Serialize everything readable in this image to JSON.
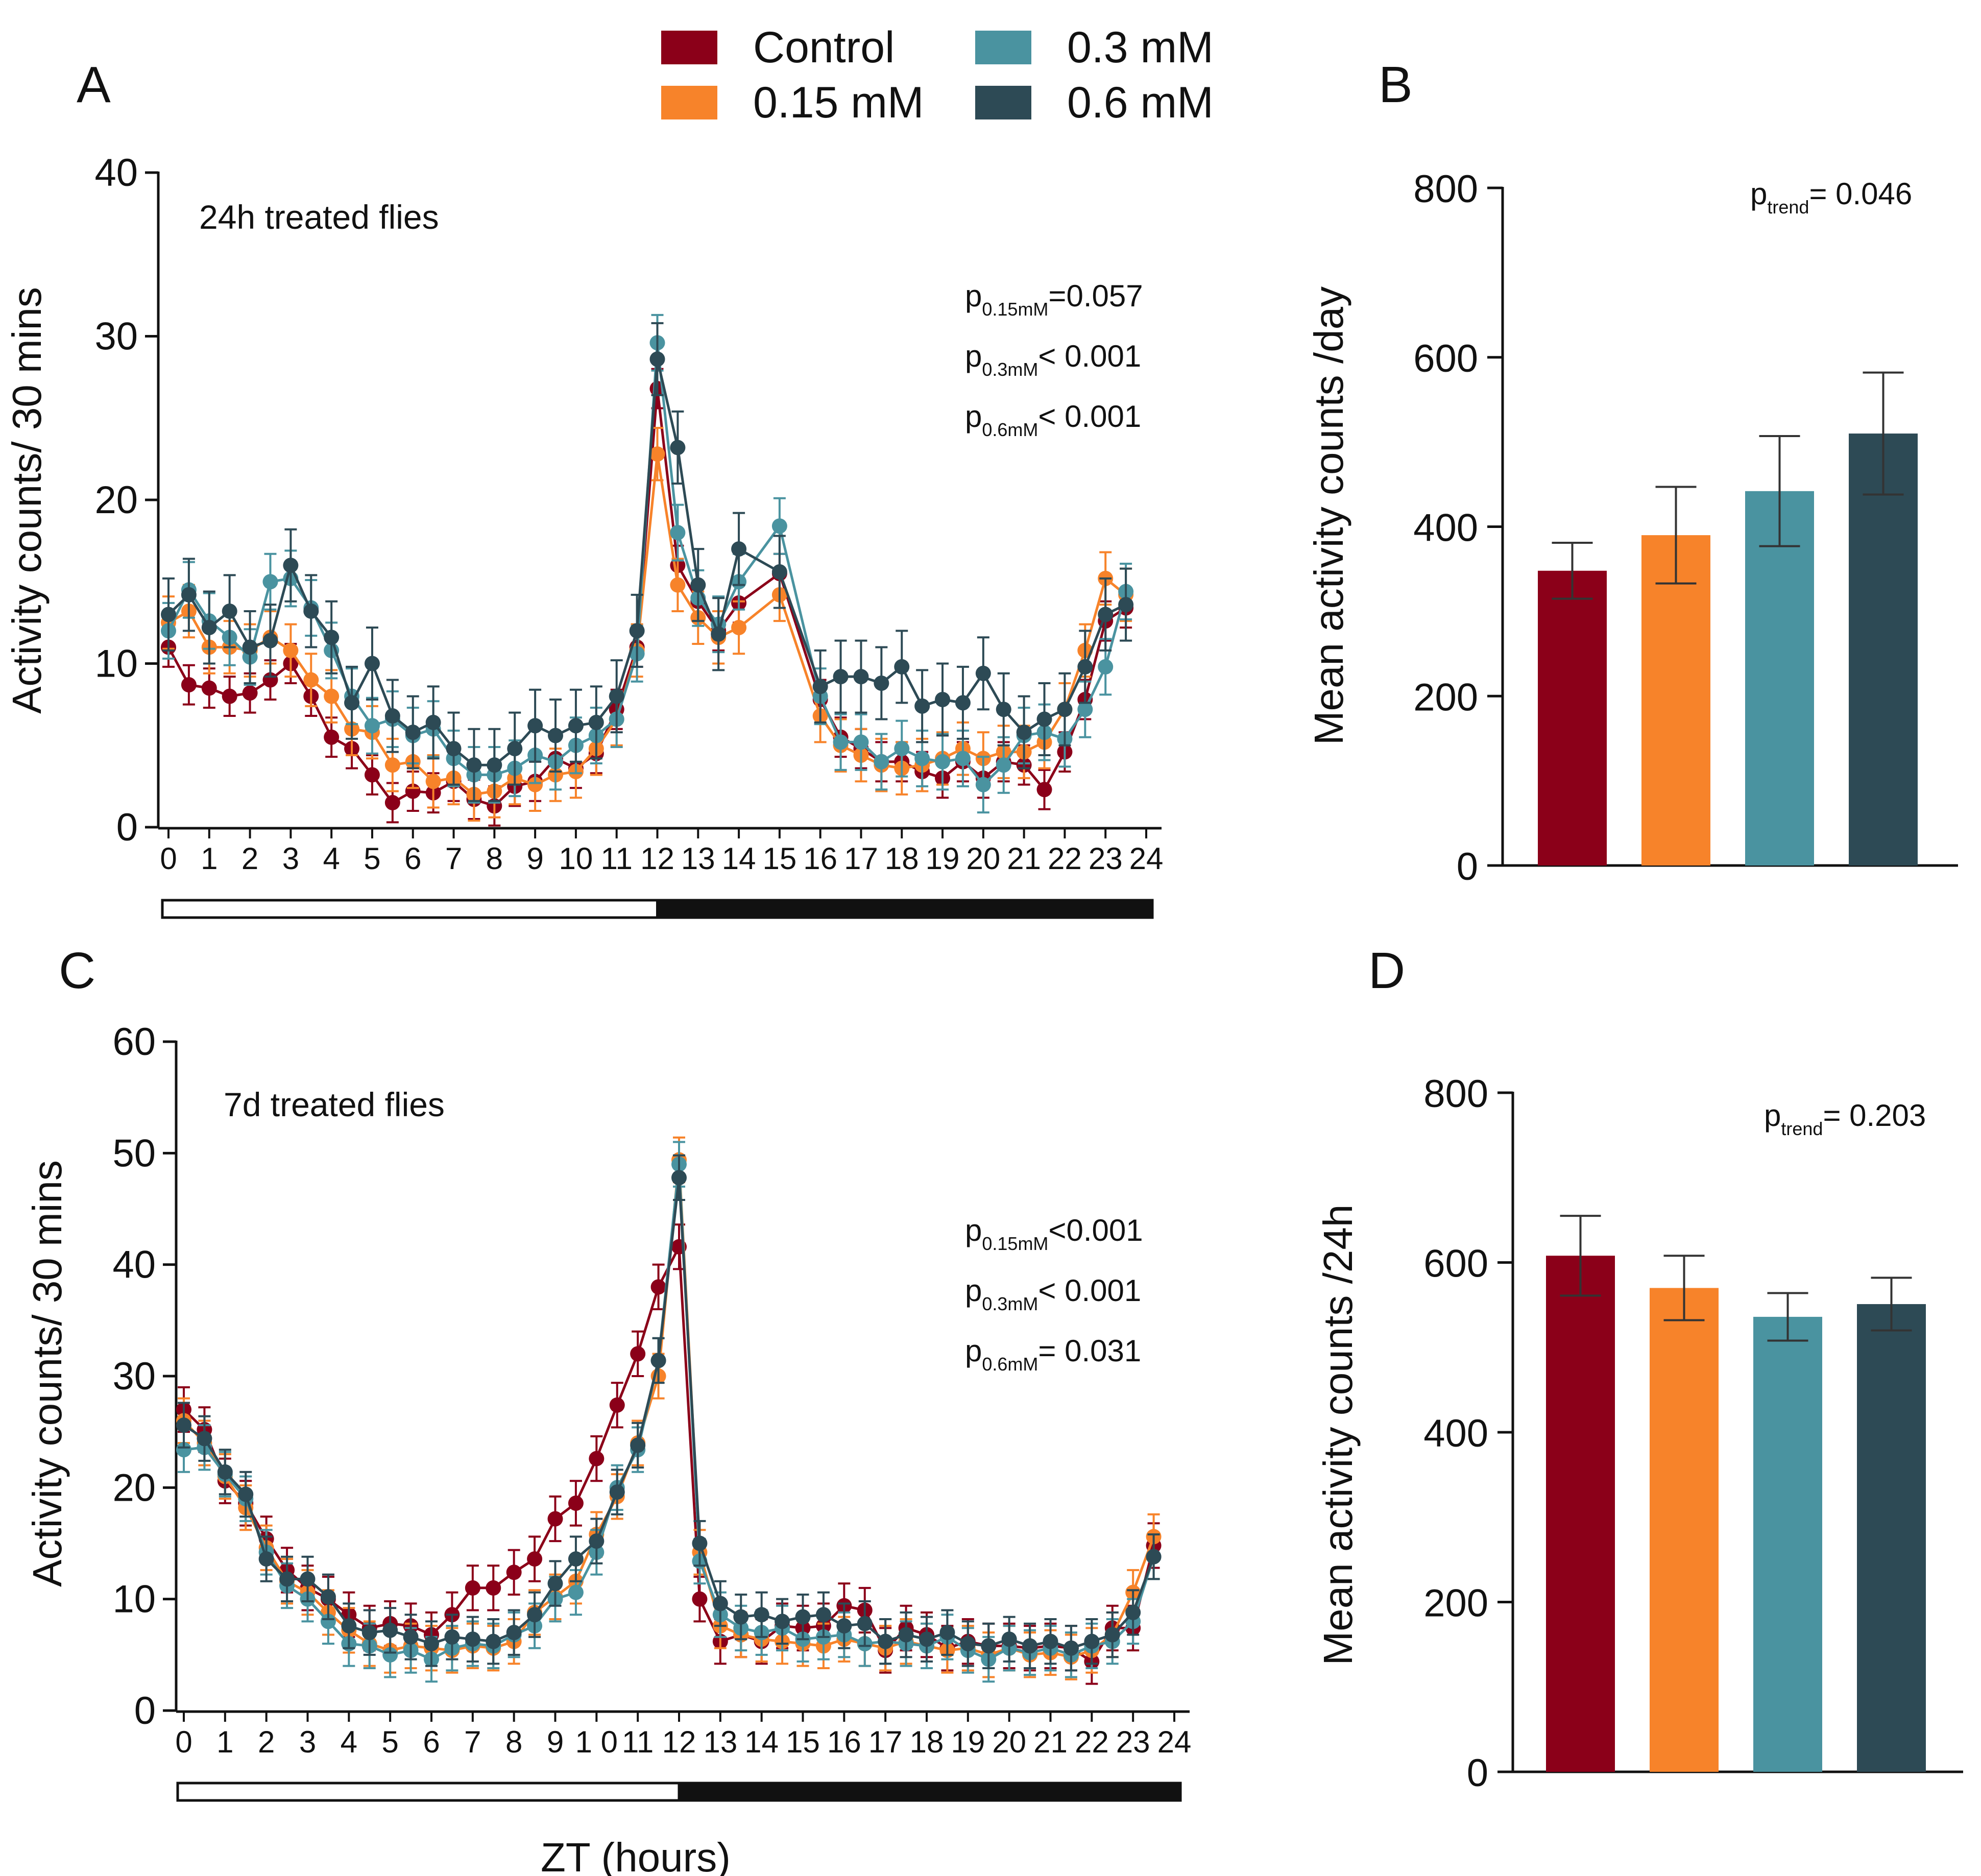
{
  "figure": {
    "legend": [
      {
        "label": "Control",
        "color": "#8b0019"
      },
      {
        "label": "0.15 mM",
        "color": "#f7832a"
      },
      {
        "label": "0.3 mM",
        "color": "#4a93a0"
      },
      {
        "label": "0.6 mM",
        "color": "#2d4a55"
      }
    ],
    "shared_xlabel": "ZT (hours)"
  },
  "chart_data": [
    {
      "panel": "A",
      "type": "line",
      "title": "24h treated flies",
      "ylabel": "Activity counts/ 30 mins",
      "xlabel": "ZT (hours)",
      "xlim": [
        0,
        24
      ],
      "ylim": [
        0,
        40
      ],
      "yticks": [
        0,
        10,
        20,
        30,
        40
      ],
      "xtick_labels": [
        "0",
        "1",
        "2",
        "3",
        "4",
        "5",
        "6",
        "7",
        "8",
        "9",
        "10",
        "11",
        "12",
        "13",
        "14",
        "15",
        "16",
        "17",
        "18",
        "19",
        "20",
        "21",
        "22",
        "23",
        "24"
      ],
      "light_dark_bar": {
        "light": [
          0,
          12
        ],
        "dark": [
          12,
          24
        ]
      },
      "annotations": [
        {
          "main": "p",
          "sub": "0.15mM",
          "rest": "=0.057"
        },
        {
          "main": "p",
          "sub": "0.3mM",
          "rest": "< 0.001"
        },
        {
          "main": "p",
          "sub": "0.6mM",
          "rest": "< 0.001"
        }
      ],
      "series": [
        {
          "name": "Control",
          "color": "#8b0019",
          "err": 1.2,
          "x": [
            0,
            0.5,
            1,
            1.5,
            2,
            2.5,
            3,
            3.5,
            4,
            4.5,
            5,
            5.5,
            6,
            6.5,
            7,
            7.5,
            8,
            8.5,
            9,
            9.5,
            10,
            10.5,
            11,
            11.5,
            12,
            12.5,
            13,
            13.5,
            14,
            15,
            16,
            16.5,
            17,
            17.5,
            18,
            18.5,
            19,
            19.5,
            20,
            20.5,
            21,
            21.5,
            22,
            22.5,
            23,
            23.5
          ],
          "y": [
            11,
            8.7,
            8.5,
            8,
            8.2,
            9,
            10,
            8,
            5.5,
            4.8,
            3.2,
            1.5,
            2.2,
            2.1,
            2.8,
            1.7,
            1.3,
            2.5,
            2.8,
            4.2,
            3.6,
            4.5,
            7.2,
            11,
            26.8,
            16,
            13.8,
            12,
            13.7,
            15.5,
            7.8,
            5.5,
            4.8,
            4,
            4,
            3.4,
            3,
            4,
            3,
            4,
            3.8,
            2.3,
            4.6,
            7.8,
            12.6,
            13.4
          ]
        },
        {
          "name": "0.15 mM",
          "color": "#f7832a",
          "err": 1.6,
          "x": [
            0,
            0.5,
            1,
            1.5,
            2,
            2.5,
            3,
            3.5,
            4,
            4.5,
            5,
            5.5,
            6,
            6.5,
            7,
            7.5,
            8,
            8.5,
            9,
            9.5,
            10,
            10.5,
            11,
            11.5,
            12,
            12.5,
            13,
            13.5,
            14,
            15,
            16,
            16.5,
            17,
            17.5,
            18,
            18.5,
            19,
            19.5,
            20,
            20.5,
            21,
            21.5,
            22,
            22.5,
            23,
            23.5
          ],
          "y": [
            12.5,
            13.2,
            11,
            11,
            10.8,
            11.6,
            10.8,
            9,
            8,
            6,
            5.8,
            3.8,
            4,
            2.8,
            3,
            2,
            2.2,
            3,
            2.6,
            3.2,
            3.4,
            4.8,
            6.6,
            10.8,
            22.8,
            14.8,
            12.8,
            11.6,
            12.2,
            14.2,
            6.8,
            5,
            4.4,
            3.8,
            3.6,
            3.8,
            4.2,
            4.8,
            4.2,
            4.6,
            4.6,
            5.2,
            7.2,
            10.8,
            15.2,
            14.2
          ]
        },
        {
          "name": "0.3 mM",
          "color": "#4a93a0",
          "err": 1.7,
          "x": [
            0,
            0.5,
            1,
            1.5,
            2,
            2.5,
            3,
            3.5,
            4,
            4.5,
            5,
            5.5,
            6,
            6.5,
            7,
            7.5,
            8,
            8.5,
            9,
            9.5,
            10,
            10.5,
            11,
            11.5,
            12,
            12.5,
            13,
            13.5,
            14,
            15,
            16,
            16.5,
            17,
            17.5,
            18,
            18.5,
            19,
            19.5,
            20,
            20.5,
            21,
            21.5,
            22,
            22.5,
            23,
            23.5
          ],
          "y": [
            12,
            14.5,
            12.6,
            11.6,
            10.4,
            15,
            15.2,
            13.4,
            10.8,
            8,
            6.2,
            6.6,
            5.6,
            6,
            4.2,
            3.2,
            3.2,
            3.6,
            4.4,
            4,
            5,
            5.6,
            6.6,
            10.6,
            29.6,
            18,
            14,
            12.4,
            15,
            18.4,
            8,
            5.2,
            5.2,
            4,
            4.8,
            4.2,
            4,
            4.2,
            2.6,
            3.8,
            5.6,
            5.8,
            5.4,
            7.2,
            9.8,
            14.4
          ]
        },
        {
          "name": "0.6 mM",
          "color": "#2d4a55",
          "err": 2.2,
          "x": [
            0,
            0.5,
            1,
            1.5,
            2,
            2.5,
            3,
            3.5,
            4,
            4.5,
            5,
            5.5,
            6,
            6.5,
            7,
            7.5,
            8,
            8.5,
            9,
            9.5,
            10,
            10.5,
            11,
            11.5,
            12,
            12.5,
            13,
            13.5,
            14,
            15,
            16,
            16.5,
            17,
            17.5,
            18,
            18.5,
            19,
            19.5,
            20,
            20.5,
            21,
            21.5,
            22,
            22.5,
            23,
            23.5
          ],
          "y": [
            13,
            14.2,
            12.2,
            13.2,
            11,
            11.4,
            16,
            13.2,
            11.6,
            7.6,
            10,
            6.8,
            5.8,
            6.4,
            4.8,
            3.8,
            3.8,
            4.8,
            6.2,
            5.6,
            6.2,
            6.4,
            8,
            12,
            28.6,
            23.2,
            14.8,
            11.8,
            17,
            15.6,
            8.6,
            9.2,
            9.2,
            8.8,
            9.8,
            7.4,
            7.8,
            7.6,
            9.4,
            7.2,
            5.8,
            6.6,
            7.2,
            9.8,
            13,
            13.6
          ]
        }
      ]
    },
    {
      "panel": "B",
      "type": "bar",
      "ylabel": "Mean activity counts /day",
      "ylim": [
        0,
        800
      ],
      "yticks": [
        0,
        200,
        400,
        600,
        800
      ],
      "annotation": {
        "main": "p",
        "sub": "trend",
        "rest": "= 0.046"
      },
      "categories": [
        "Control",
        "0.15 mM",
        "0.3 mM",
        "0.6 mM"
      ],
      "values": [
        348,
        390,
        442,
        510
      ],
      "errors": [
        33,
        57,
        65,
        72
      ],
      "colors": [
        "#8b0019",
        "#f7832a",
        "#4a93a0",
        "#2d4a55"
      ]
    },
    {
      "panel": "C",
      "type": "line",
      "title": "7d treated flies",
      "ylabel": "Activity counts/ 30 mins",
      "xlabel": "ZT (hours)",
      "xlim": [
        0,
        24
      ],
      "ylim": [
        0,
        60
      ],
      "yticks": [
        0,
        10,
        20,
        30,
        40,
        50,
        60
      ],
      "xtick_labels": [
        "0",
        "1",
        "2",
        "3",
        "4",
        "5",
        "6",
        "7",
        "8",
        "9",
        "1 0",
        "11",
        "12",
        "13",
        "14",
        "15",
        "16",
        "17",
        "18",
        "19",
        "20",
        "21",
        "22",
        "23",
        "24"
      ],
      "light_dark_bar": {
        "light": [
          0,
          12
        ],
        "dark": [
          12,
          24
        ]
      },
      "annotations": [
        {
          "main": "p",
          "sub": "0.15mM",
          "rest": "<0.001"
        },
        {
          "main": "p",
          "sub": "0.3mM",
          "rest": "< 0.001"
        },
        {
          "main": "p",
          "sub": "0.6mM",
          "rest": "= 0.031"
        }
      ],
      "series": [
        {
          "name": "Control",
          "color": "#8b0019",
          "err": 2.0,
          "x": [
            0,
            0.5,
            1,
            1.5,
            2,
            2.5,
            3,
            3.5,
            4,
            4.5,
            5,
            5.5,
            6,
            6.5,
            7,
            7.5,
            8,
            8.5,
            9,
            9.5,
            10,
            10.5,
            11,
            11.5,
            12,
            12.5,
            13,
            13.5,
            14,
            14.5,
            15,
            15.5,
            16,
            16.5,
            17,
            17.5,
            18,
            18.5,
            19,
            19.5,
            20,
            20.5,
            21,
            21.5,
            22,
            22.5,
            23,
            23.5
          ],
          "y": [
            27,
            25.2,
            20.6,
            18.6,
            15.4,
            12.6,
            11,
            10,
            8.6,
            7.4,
            7.8,
            7.6,
            6.8,
            8.6,
            11,
            11,
            12.4,
            13.6,
            17.2,
            18.6,
            22.6,
            27.4,
            32,
            38,
            41.6,
            10,
            6.2,
            6.8,
            6.2,
            7.6,
            7.4,
            7.6,
            9.4,
            9,
            5.4,
            7.4,
            6.8,
            5.6,
            6.2,
            5.8,
            5.8,
            5.6,
            5.8,
            5.6,
            4.4,
            7.4,
            7.4,
            14.8
          ]
        },
        {
          "name": "0.15 mM",
          "color": "#f7832a",
          "err": 2.0,
          "x": [
            0,
            0.5,
            1,
            1.5,
            2,
            2.5,
            3,
            3.5,
            4,
            4.5,
            5,
            5.5,
            6,
            6.5,
            7,
            7.5,
            8,
            8.5,
            9,
            9.5,
            10,
            10.5,
            11,
            11.5,
            12,
            12.5,
            13,
            13.5,
            14,
            14.5,
            15,
            15.5,
            16,
            16.5,
            17,
            17.5,
            18,
            18.5,
            19,
            19.5,
            20,
            20.5,
            21,
            21.5,
            22,
            22.5,
            23,
            23.5
          ],
          "y": [
            26,
            24,
            21,
            18.2,
            14.6,
            11.6,
            10.6,
            8.8,
            7.2,
            6,
            5.4,
            5.8,
            5.6,
            5.4,
            5.8,
            5.6,
            6.2,
            8.8,
            10.2,
            11.6,
            15.8,
            19.2,
            24,
            30,
            49.4,
            14.2,
            7.6,
            6.8,
            6.4,
            6.2,
            6,
            5.8,
            6.4,
            6,
            5.6,
            6.2,
            5.8,
            5.4,
            5.6,
            5,
            5.6,
            5,
            5.2,
            4.8,
            5.4,
            6.8,
            10.6,
            15.6
          ]
        },
        {
          "name": "0.3 mM",
          "color": "#4a93a0",
          "err": 2.0,
          "x": [
            0,
            0.5,
            1,
            1.5,
            2,
            2.5,
            3,
            3.5,
            4,
            4.5,
            5,
            5.5,
            6,
            6.5,
            7,
            7.5,
            8,
            8.5,
            9,
            9.5,
            10,
            10.5,
            11,
            11.5,
            12,
            12.5,
            13,
            13.5,
            14,
            14.5,
            15,
            15.5,
            16,
            16.5,
            17,
            17.5,
            18,
            18.5,
            19,
            19.5,
            20,
            20.5,
            21,
            21.5,
            22,
            22.5,
            23,
            23.5
          ],
          "y": [
            23.4,
            23.6,
            21.2,
            19,
            14.2,
            11.2,
            10,
            8,
            6,
            5.8,
            5,
            5.4,
            4.6,
            5.6,
            6,
            5.8,
            6.8,
            7.6,
            10,
            10.6,
            14.2,
            20,
            23.4,
            31.4,
            49,
            13.4,
            8.6,
            7.4,
            7,
            7.4,
            6.4,
            6.6,
            6.8,
            6,
            6.2,
            6,
            5.8,
            6.6,
            5.4,
            4.6,
            5.6,
            5.2,
            5.6,
            5,
            5.8,
            6.2,
            8,
            13.8
          ]
        },
        {
          "name": "0.6 mM",
          "color": "#2d4a55",
          "err": 2.0,
          "x": [
            0,
            0.5,
            1,
            1.5,
            2,
            2.5,
            3,
            3.5,
            4,
            4.5,
            5,
            5.5,
            6,
            6.5,
            7,
            7.5,
            8,
            8.5,
            9,
            9.5,
            10,
            10.5,
            11,
            11.5,
            12,
            12.5,
            13,
            13.5,
            14,
            14.5,
            15,
            15.5,
            16,
            16.5,
            17,
            17.5,
            18,
            18.5,
            19,
            19.5,
            20,
            20.5,
            21,
            21.5,
            22,
            22.5,
            23,
            23.5
          ],
          "y": [
            25.6,
            24.4,
            21.4,
            19.4,
            13.6,
            11.8,
            11.8,
            10.2,
            7.6,
            7,
            7.2,
            6.6,
            6,
            6.6,
            6.4,
            6.2,
            7,
            8.6,
            11.4,
            13.6,
            15.2,
            19.6,
            23.8,
            31.4,
            47.8,
            15,
            9.6,
            8.4,
            8.6,
            8,
            8.4,
            8.6,
            7.6,
            7.8,
            6.2,
            6.8,
            6.4,
            7,
            6,
            5.8,
            6.4,
            5.8,
            6.2,
            5.6,
            6.2,
            6.8,
            8.8,
            13.8
          ]
        }
      ]
    },
    {
      "panel": "D",
      "type": "bar",
      "ylabel": "Mean activity counts /24h",
      "ylim": [
        0,
        800
      ],
      "yticks": [
        0,
        200,
        400,
        600,
        800
      ],
      "annotation": {
        "main": "p",
        "sub": "trend",
        "rest": "= 0.203"
      },
      "categories": [
        "Control",
        "0.15 mM",
        "0.3 mM",
        "0.6 mM"
      ],
      "values": [
        608,
        570,
        536,
        551
      ],
      "errors": [
        47,
        38,
        28,
        31
      ],
      "colors": [
        "#8b0019",
        "#f7832a",
        "#4a93a0",
        "#2d4a55"
      ]
    }
  ]
}
